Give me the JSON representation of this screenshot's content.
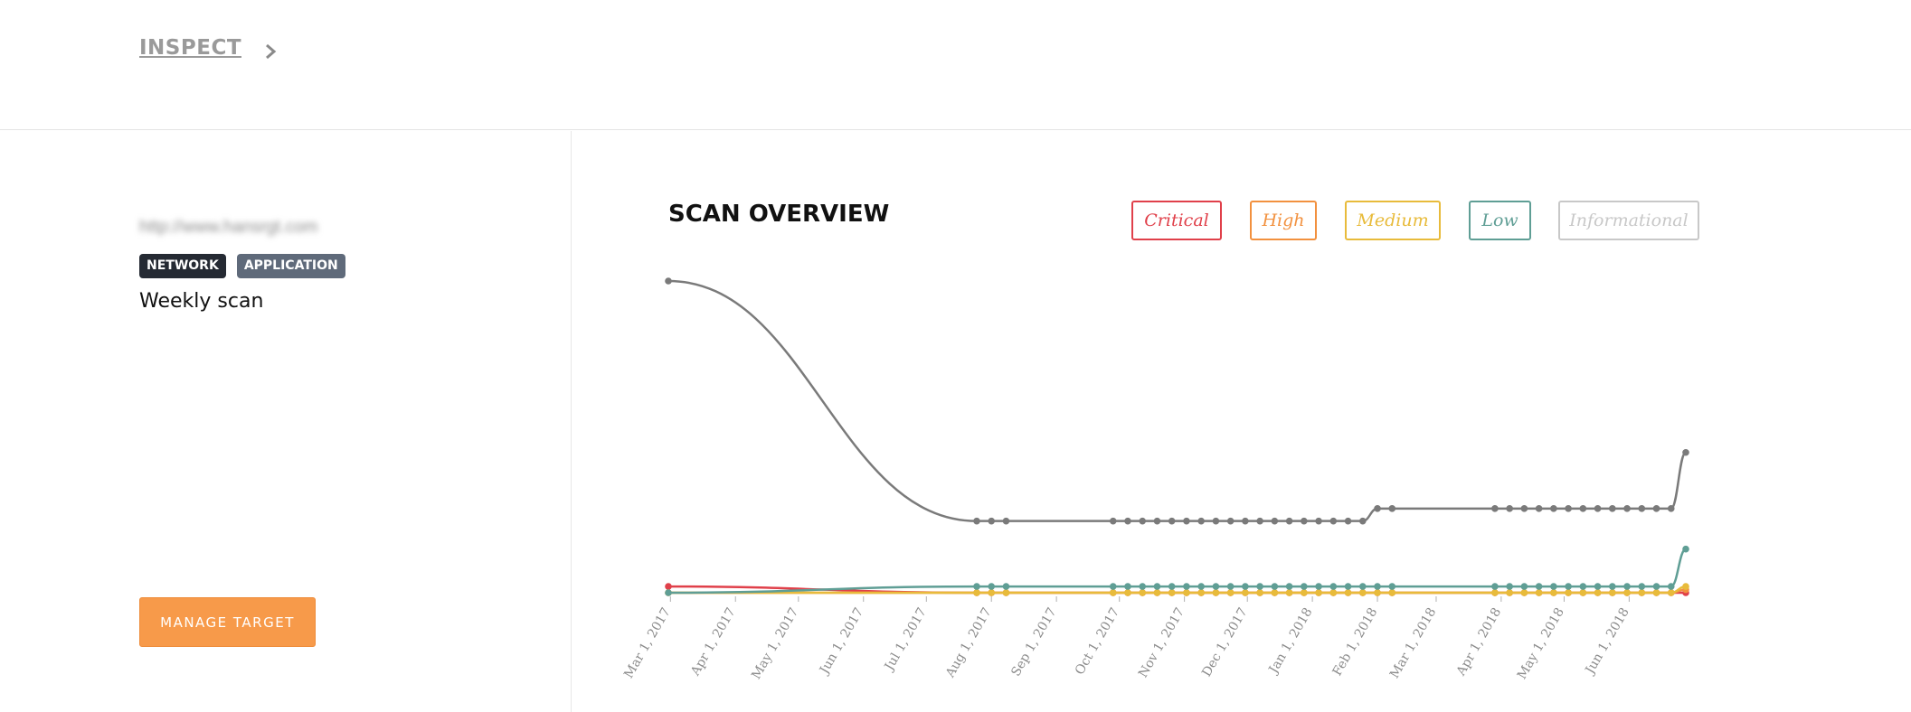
{
  "breadcrumb": {
    "label": "INSPECT"
  },
  "target": {
    "url": "http://www.hansrgt.com",
    "tags": [
      "NETWORK",
      "APPLICATION"
    ],
    "scan_name": "Weekly scan",
    "manage_label": "MANAGE TARGET"
  },
  "overview": {
    "title": "SCAN OVERVIEW",
    "legend": [
      {
        "label": "Critical",
        "color": "#e0404a"
      },
      {
        "label": "High",
        "color": "#f2913f"
      },
      {
        "label": "Medium",
        "color": "#e8bb3b"
      },
      {
        "label": "Low",
        "color": "#5f9e95"
      },
      {
        "label": "Informational",
        "color": "#c8c8c8"
      }
    ]
  },
  "chart_data": {
    "type": "line",
    "x_ticks": [
      "Mar 1, 2017",
      "Apr 1, 2017",
      "May 1, 2017",
      "Jun 1, 2017",
      "Jul 1, 2017",
      "Aug 1, 2017",
      "Sep 1, 2017",
      "Oct 1, 2017",
      "Nov 1, 2017",
      "Dec 1, 2017",
      "Jan 1, 2018",
      "Feb 1, 2018",
      "Mar 1, 2018",
      "Apr 1, 2018",
      "May 1, 2018",
      "Jun 1, 2018"
    ],
    "x": [
      "2017-02-28",
      "2017-07-25",
      "2017-08-01",
      "2017-08-08",
      "2017-09-28",
      "2017-10-05",
      "2017-10-12",
      "2017-10-19",
      "2017-10-26",
      "2017-11-02",
      "2017-11-09",
      "2017-11-16",
      "2017-11-23",
      "2017-11-30",
      "2017-12-07",
      "2017-12-14",
      "2017-12-21",
      "2017-12-28",
      "2018-01-04",
      "2018-01-11",
      "2018-01-18",
      "2018-01-25",
      "2018-02-01",
      "2018-02-08",
      "2018-03-29",
      "2018-04-05",
      "2018-04-12",
      "2018-04-19",
      "2018-04-26",
      "2018-05-03",
      "2018-05-10",
      "2018-05-17",
      "2018-05-24",
      "2018-05-31",
      "2018-06-07",
      "2018-06-14",
      "2018-06-21",
      "2018-06-28"
    ],
    "ylim": [
      0,
      100
    ],
    "series": [
      {
        "name": "Critical",
        "color": "#e0404a",
        "values": [
          2,
          0,
          0,
          0,
          0,
          0,
          0,
          0,
          0,
          0,
          0,
          0,
          0,
          0,
          0,
          0,
          0,
          0,
          0,
          0,
          0,
          0,
          0,
          0,
          0,
          0,
          0,
          0,
          0,
          0,
          0,
          0,
          0,
          0,
          0,
          0,
          0,
          0
        ]
      },
      {
        "name": "High",
        "color": "#f2913f",
        "values": [
          0,
          0,
          0,
          0,
          0,
          0,
          0,
          0,
          0,
          0,
          0,
          0,
          0,
          0,
          0,
          0,
          0,
          0,
          0,
          0,
          0,
          0,
          0,
          0,
          0,
          0,
          0,
          0,
          0,
          0,
          0,
          0,
          0,
          0,
          0,
          0,
          0,
          1
        ]
      },
      {
        "name": "Medium",
        "color": "#e8bb3b",
        "values": [
          0,
          0,
          0,
          0,
          0,
          0,
          0,
          0,
          0,
          0,
          0,
          0,
          0,
          0,
          0,
          0,
          0,
          0,
          0,
          0,
          0,
          0,
          0,
          0,
          0,
          0,
          0,
          0,
          0,
          0,
          0,
          0,
          0,
          0,
          0,
          0,
          0,
          2
        ]
      },
      {
        "name": "Low",
        "color": "#5f9e95",
        "values": [
          0,
          2,
          2,
          2,
          2,
          2,
          2,
          2,
          2,
          2,
          2,
          2,
          2,
          2,
          2,
          2,
          2,
          2,
          2,
          2,
          2,
          2,
          2,
          2,
          2,
          2,
          2,
          2,
          2,
          2,
          2,
          2,
          2,
          2,
          2,
          2,
          2,
          14
        ]
      },
      {
        "name": "Informational",
        "color": "#7a7a7a",
        "values": [
          100,
          23,
          23,
          23,
          23,
          23,
          23,
          23,
          23,
          23,
          23,
          23,
          23,
          23,
          23,
          23,
          23,
          23,
          23,
          23,
          23,
          23,
          27,
          27,
          27,
          27,
          27,
          27,
          27,
          27,
          27,
          27,
          27,
          27,
          27,
          27,
          27,
          45
        ]
      }
    ]
  }
}
